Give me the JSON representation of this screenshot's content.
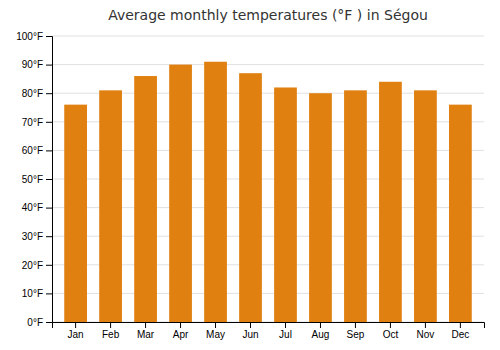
{
  "chart_data": {
    "type": "bar",
    "title": "Average monthly temperatures (°F ) in Ségou",
    "categories": [
      "Jan",
      "Feb",
      "Mar",
      "Apr",
      "May",
      "Jun",
      "Jul",
      "Aug",
      "Sep",
      "Oct",
      "Nov",
      "Dec"
    ],
    "values": [
      76,
      81,
      86,
      90,
      91,
      87,
      82,
      80,
      81,
      84,
      81,
      76
    ],
    "color": "#E08010",
    "ylim": [
      0,
      100
    ],
    "yticks": [
      {
        "value": 0,
        "label": "0°F"
      },
      {
        "value": 10,
        "label": "10°F"
      },
      {
        "value": 20,
        "label": "20°F"
      },
      {
        "value": 30,
        "label": "30°F"
      },
      {
        "value": 40,
        "label": "40°F"
      },
      {
        "value": 50,
        "label": "50°F"
      },
      {
        "value": 60,
        "label": "60°F"
      },
      {
        "value": 70,
        "label": "70°F"
      },
      {
        "value": 80,
        "label": "80°F"
      },
      {
        "value": 90,
        "label": "90°F"
      },
      {
        "value": 100,
        "label": "100°F"
      }
    ],
    "grid": true
  }
}
